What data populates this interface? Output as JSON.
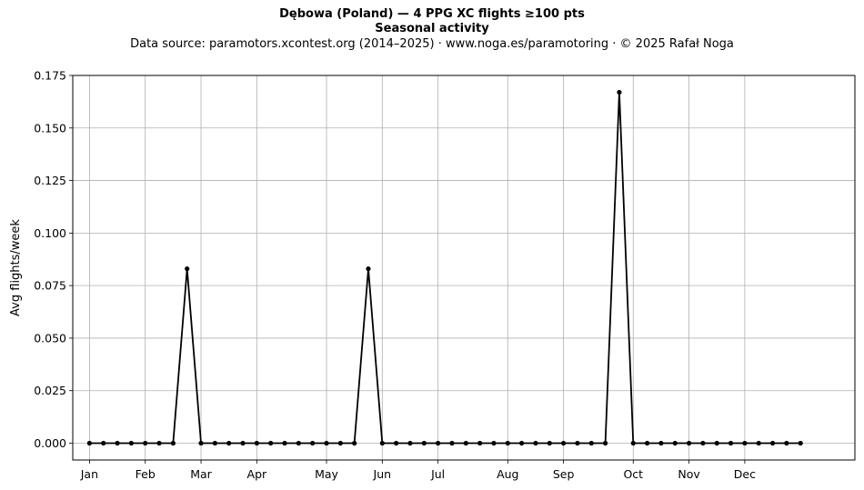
{
  "chart_data": {
    "type": "line",
    "title": "Dębowa (Poland)  —  4 PPG XC flights ≥100 pts",
    "subtitle": "Seasonal activity",
    "source_line": "Data source: paramotors.xcontest.org (2014–2025)  ·  www.noga.es/paramotoring  ·  © 2025 Rafał Noga",
    "xlabel": "",
    "ylabel": "Avg flights/week",
    "ylim": [
      -0.008,
      0.175
    ],
    "yticks": [
      0.0,
      0.025,
      0.05,
      0.075,
      0.1,
      0.125,
      0.15,
      0.175
    ],
    "ytick_labels": [
      "0.000",
      "0.025",
      "0.050",
      "0.075",
      "0.100",
      "0.125",
      "0.150",
      "0.175"
    ],
    "x_unit": "week of year",
    "xlim": [
      -1.2,
      54.9
    ],
    "month_ticks": [
      {
        "label": "Jan",
        "week": 0
      },
      {
        "label": "Feb",
        "week": 4
      },
      {
        "label": "Mar",
        "week": 8
      },
      {
        "label": "Apr",
        "week": 12
      },
      {
        "label": "May",
        "week": 17
      },
      {
        "label": "Jun",
        "week": 21
      },
      {
        "label": "Jul",
        "week": 25
      },
      {
        "label": "Aug",
        "week": 30
      },
      {
        "label": "Sep",
        "week": 34
      },
      {
        "label": "Oct",
        "week": 39
      },
      {
        "label": "Nov",
        "week": 43
      },
      {
        "label": "Dec",
        "week": 47
      }
    ],
    "grid": true,
    "series": [
      {
        "color": "#000000",
        "marker": "dot",
        "x": [
          0,
          1,
          2,
          3,
          4,
          5,
          6,
          7,
          8,
          9,
          10,
          11,
          12,
          13,
          14,
          15,
          16,
          17,
          18,
          19,
          20,
          21,
          22,
          23,
          24,
          25,
          26,
          27,
          28,
          29,
          30,
          31,
          32,
          33,
          34,
          35,
          36,
          37,
          38,
          39,
          40,
          41,
          42,
          43,
          44,
          45,
          46,
          47,
          48,
          49,
          50,
          51
        ],
        "values": [
          0,
          0,
          0,
          0,
          0,
          0,
          0,
          0.083,
          0,
          0,
          0,
          0,
          0,
          0,
          0,
          0,
          0,
          0,
          0,
          0,
          0.083,
          0,
          0,
          0,
          0,
          0,
          0,
          0,
          0,
          0,
          0,
          0,
          0,
          0,
          0,
          0,
          0,
          0,
          0.167,
          0,
          0,
          0,
          0,
          0,
          0,
          0,
          0,
          0,
          0,
          0,
          0,
          0
        ]
      }
    ]
  }
}
